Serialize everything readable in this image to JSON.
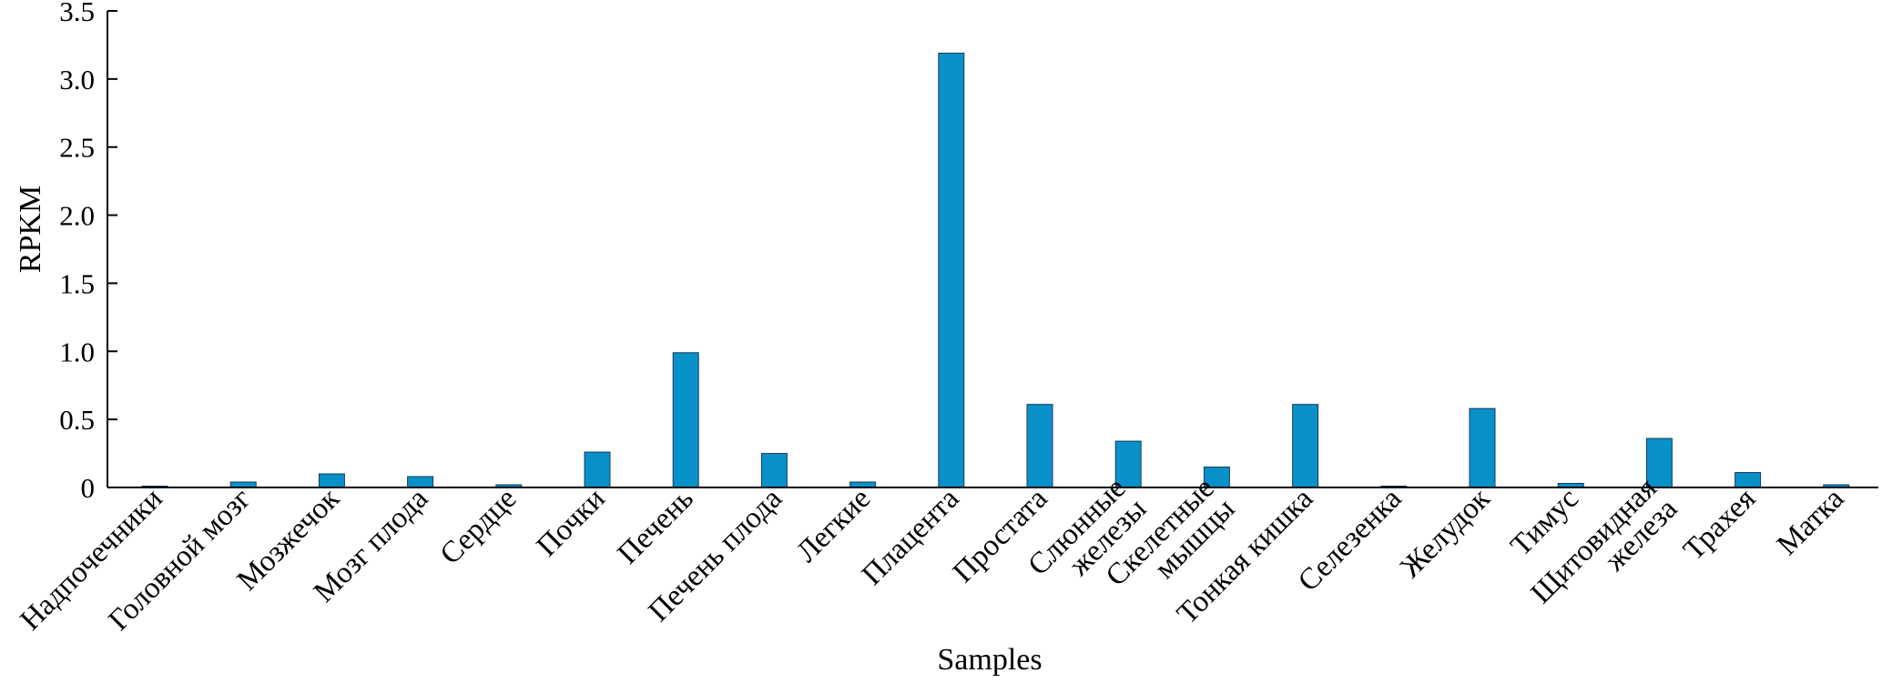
{
  "chart_data": {
    "type": "bar",
    "xlabel": "Samples",
    "ylabel": "RPKM",
    "ylim": [
      0,
      3.5
    ],
    "yticks": [
      "0",
      "0.5",
      "1.0",
      "1.5",
      "2.0",
      "2.5",
      "3.0",
      "3.5"
    ],
    "bar_color": "#0891c9",
    "grid": false,
    "categories": [
      [
        "Надпочечники"
      ],
      [
        "Головной мозг"
      ],
      [
        "Мозжечок"
      ],
      [
        "Мозг плода"
      ],
      [
        "Сердце"
      ],
      [
        "Почки"
      ],
      [
        "Печень"
      ],
      [
        "Печень плода"
      ],
      [
        "Легкие"
      ],
      [
        "Плацента"
      ],
      [
        "Простата"
      ],
      [
        "Слюнные",
        "железы"
      ],
      [
        "Скелетные",
        "мышцы"
      ],
      [
        "Тонкая кишка"
      ],
      [
        "Селезенка"
      ],
      [
        "Желудок"
      ],
      [
        "Тимус"
      ],
      [
        "Щитовидная",
        "железа"
      ],
      [
        "Трахея"
      ],
      [
        "Матка"
      ]
    ],
    "values": [
      0.01,
      0.04,
      0.1,
      0.08,
      0.02,
      0.26,
      0.99,
      0.25,
      0.04,
      3.19,
      0.61,
      0.34,
      0.15,
      0.61,
      0.01,
      0.58,
      0.03,
      0.36,
      0.11,
      0.02
    ]
  }
}
